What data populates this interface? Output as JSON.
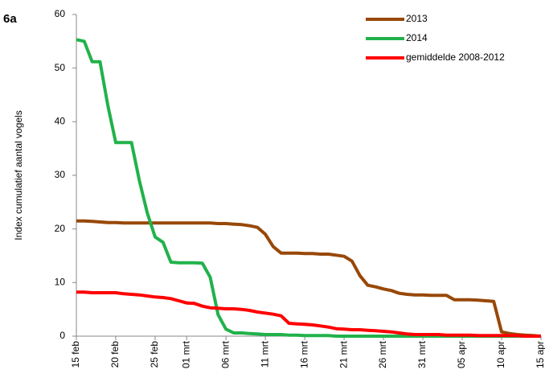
{
  "chart_data": {
    "type": "line",
    "panel_label": "6a",
    "y_label": "Index cumulatief aantal vogels",
    "categories": [
      "15 feb",
      null,
      null,
      null,
      null,
      "20 feb",
      null,
      null,
      null,
      null,
      "25 feb",
      null,
      null,
      null,
      "01 mrt",
      null,
      null,
      null,
      null,
      "06 mrt",
      null,
      null,
      null,
      null,
      "11 mrt",
      null,
      null,
      null,
      null,
      "16 mrt",
      null,
      null,
      null,
      null,
      "21 mrt",
      null,
      null,
      null,
      null,
      "26 mrt",
      null,
      null,
      null,
      null,
      "31 mrt",
      null,
      null,
      null,
      null,
      "05 apr",
      null,
      null,
      null,
      null,
      "10 apr",
      null,
      null,
      null,
      null,
      "15 apr"
    ],
    "series": [
      {
        "name": "2013",
        "color": "#984807",
        "values": [
          21.5,
          21.5,
          21.4,
          21.3,
          21.2,
          21.2,
          21.1,
          21.1,
          21.1,
          21.1,
          21.1,
          21.1,
          21.1,
          21.1,
          21.1,
          21.1,
          21.1,
          21.1,
          21,
          21,
          20.9,
          20.8,
          20.6,
          20.3,
          19,
          16.7,
          15.5,
          15.5,
          15.5,
          15.4,
          15.4,
          15.3,
          15.3,
          15.1,
          14.9,
          14,
          11.3,
          9.5,
          9.2,
          8.8,
          8.5,
          8,
          7.8,
          7.7,
          7.7,
          7.6,
          7.6,
          7.6,
          6.8,
          6.8,
          6.8,
          6.7,
          6.6,
          6.5,
          0.8,
          0.5,
          0.3,
          0.2,
          0.1,
          0
        ]
      },
      {
        "name": "2014",
        "color": "#21b24b",
        "values": [
          55.3,
          55,
          51.2,
          51.2,
          43,
          36.1,
          36.1,
          36.1,
          29,
          23,
          18.5,
          17.5,
          13.8,
          13.7,
          13.7,
          13.7,
          13.6,
          11,
          4,
          1.3,
          0.6,
          0.6,
          0.5,
          0.4,
          0.3,
          0.3,
          0.3,
          0.2,
          0.2,
          0.1,
          0.1,
          0.1,
          0.1,
          0,
          0,
          0,
          0,
          0,
          0,
          0,
          0,
          0,
          0,
          0,
          0,
          0,
          0,
          0,
          0,
          0,
          0,
          0,
          0,
          0,
          0,
          0,
          0,
          0,
          0,
          0
        ]
      },
      {
        "name": "gemiddelde 2008-2012",
        "color": "#ff0000",
        "values": [
          8.2,
          8.2,
          8.1,
          8.1,
          8.1,
          8.1,
          7.9,
          7.8,
          7.7,
          7.5,
          7.3,
          7.2,
          7,
          6.6,
          6.2,
          6.1,
          5.6,
          5.3,
          5.2,
          5.1,
          5.1,
          5,
          4.8,
          4.5,
          4.3,
          4.1,
          3.8,
          2.4,
          2.3,
          2.2,
          2.1,
          1.9,
          1.7,
          1.4,
          1.3,
          1.2,
          1.2,
          1.1,
          1,
          0.9,
          0.8,
          0.6,
          0.4,
          0.3,
          0.3,
          0.3,
          0.3,
          0.2,
          0.2,
          0.2,
          0.2,
          0.1,
          0.1,
          0.1,
          0.1,
          0.1,
          0.1,
          0,
          0,
          0
        ]
      }
    ],
    "ylim": [
      0,
      60
    ],
    "yticks": [
      0,
      10,
      20,
      30,
      40,
      50,
      60
    ],
    "grid": false,
    "legend": "upper-right"
  }
}
